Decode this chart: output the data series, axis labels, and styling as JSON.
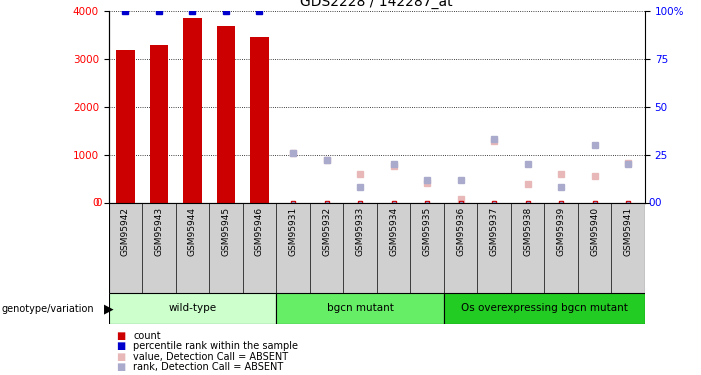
{
  "title": "GDS2228 / 142287_at",
  "samples": [
    "GSM95942",
    "GSM95943",
    "GSM95944",
    "GSM95945",
    "GSM95946",
    "GSM95931",
    "GSM95932",
    "GSM95933",
    "GSM95934",
    "GSM95935",
    "GSM95936",
    "GSM95937",
    "GSM95938",
    "GSM95939",
    "GSM95940",
    "GSM95941"
  ],
  "bar_values": [
    3200,
    3300,
    3850,
    3700,
    3470,
    null,
    null,
    null,
    null,
    null,
    null,
    null,
    null,
    null,
    null,
    null
  ],
  "bar_pct": [
    100,
    100,
    100,
    100,
    100,
    null,
    null,
    null,
    null,
    null,
    null,
    null,
    null,
    null,
    null,
    null
  ],
  "absent_value": [
    null,
    null,
    null,
    null,
    null,
    1040,
    880,
    590,
    770,
    400,
    70,
    1280,
    380,
    600,
    560,
    820
  ],
  "absent_rank": [
    null,
    null,
    null,
    null,
    null,
    26,
    22,
    8,
    20,
    12,
    12,
    33,
    20,
    8,
    30,
    20
  ],
  "small_red_absent": [
    null,
    null,
    null,
    null,
    null,
    true,
    true,
    true,
    true,
    true,
    true,
    true,
    true,
    true,
    true,
    true
  ],
  "groups": [
    {
      "label": "wild-type",
      "start": 0,
      "end": 5,
      "color": "#ccffcc"
    },
    {
      "label": "bgcn mutant",
      "start": 5,
      "end": 10,
      "color": "#66ee66"
    },
    {
      "label": "Os overexpressing bgcn mutant",
      "start": 10,
      "end": 16,
      "color": "#22cc22"
    }
  ],
  "ylim_left": [
    0,
    4000
  ],
  "ylim_right": [
    0,
    100
  ],
  "bar_color": "#cc0000",
  "pct_marker_color": "#0000cc",
  "absent_value_color": "#e8b8b8",
  "absent_rank_color": "#aaaacc",
  "small_red_color": "#cc0000",
  "grid_color": "black",
  "sample_bg_color": "#d0d0d0",
  "legend_items": [
    {
      "label": "count",
      "color": "#cc0000"
    },
    {
      "label": "percentile rank within the sample",
      "color": "#0000cc"
    },
    {
      "label": "value, Detection Call = ABSENT",
      "color": "#e8b8b8"
    },
    {
      "label": "rank, Detection Call = ABSENT",
      "color": "#aaaacc"
    }
  ]
}
